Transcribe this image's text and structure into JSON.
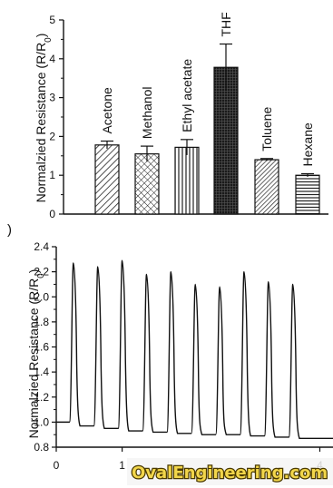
{
  "panel_b_label": ")",
  "watermark": {
    "text": "OvalEngineering.com",
    "color": "#f2d64b"
  },
  "chart_data": [
    {
      "type": "bar",
      "title": "",
      "xlabel": "",
      "ylabel_main": "Normalzied Resistance (R/R",
      "ylabel_sub": "0",
      "ylabel_close": ")",
      "ylim": [
        0,
        5
      ],
      "yticks": [
        "0",
        "1",
        "2",
        "3",
        "4",
        "5"
      ],
      "grid": false,
      "categories": [
        "Acetone",
        "Methanol",
        "Ethyl acetate",
        "THF",
        "Toluene",
        "Hexane"
      ],
      "values": [
        1.78,
        1.55,
        1.72,
        3.78,
        1.4,
        1.0
      ],
      "errors": [
        0.1,
        0.2,
        0.2,
        0.6,
        0.03,
        0.04
      ],
      "patterns": [
        "diag-right",
        "cross-hatch",
        "vertical",
        "dense-dark",
        "diag-right-fine",
        "horizontal"
      ]
    },
    {
      "type": "line",
      "title": "",
      "xlabel": "",
      "ylabel_main": "Normalzied Resistance (R/R",
      "ylabel_sub": "0",
      "ylabel_close": ")",
      "ylim": [
        0.8,
        2.4
      ],
      "yticks": [
        "0.8",
        "1.0",
        "1.2",
        "1.4",
        "1.6",
        "1.8",
        "2.0",
        "2.2",
        "2.4"
      ],
      "xlim": [
        0,
        420
      ],
      "xticks": [
        "0",
        "1",
        "4"
      ],
      "grid": false,
      "cycles": [
        {
          "start": 20,
          "peak": 2.27
        },
        {
          "start": 57,
          "peak": 2.24
        },
        {
          "start": 94,
          "peak": 2.29
        },
        {
          "start": 131,
          "peak": 2.18
        },
        {
          "start": 168,
          "peak": 2.2
        },
        {
          "start": 205,
          "peak": 2.1
        },
        {
          "start": 242,
          "peak": 2.08
        },
        {
          "start": 279,
          "peak": 2.2
        },
        {
          "start": 316,
          "peak": 2.12
        },
        {
          "start": 353,
          "peak": 2.1
        }
      ],
      "baseline": [
        1.0,
        0.97,
        0.95,
        0.93,
        0.92,
        0.91,
        0.9,
        0.9,
        0.89,
        0.88,
        0.87
      ]
    }
  ]
}
